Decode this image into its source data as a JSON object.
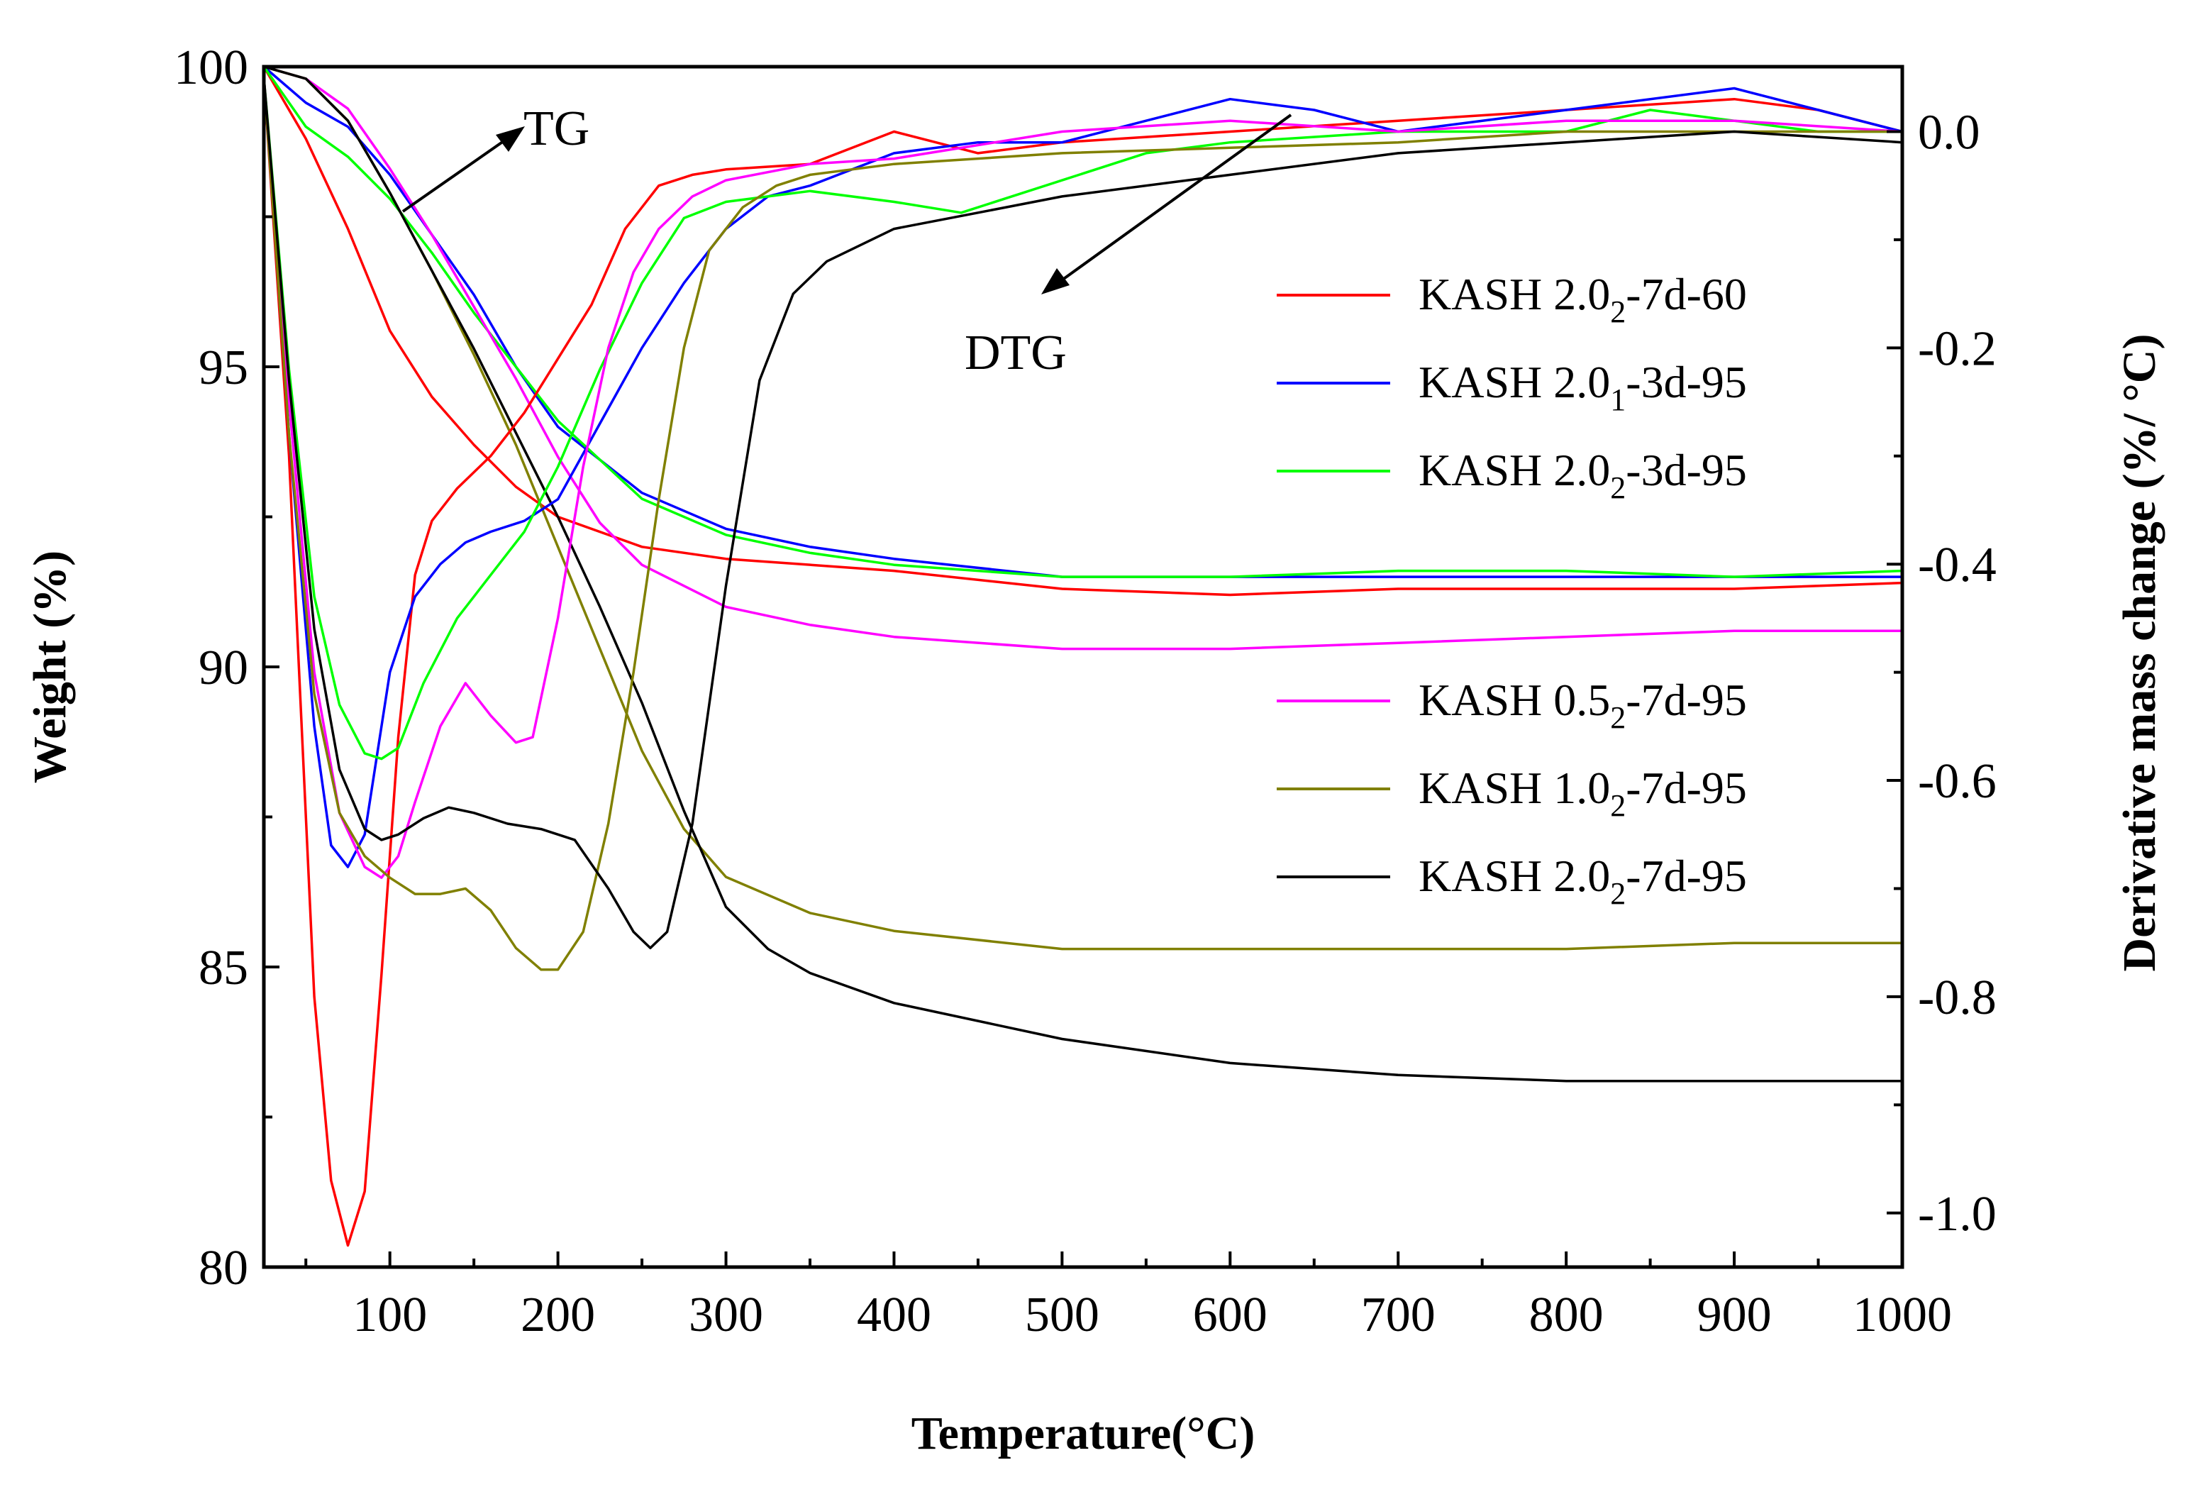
{
  "chart_data": {
    "type": "line",
    "title": "",
    "xlabel": "Temperature(°C)",
    "ylabel_left": "Weight (%)",
    "ylabel_right": "Derivative mass change (%/ °C)",
    "xlim": [
      25,
      1000
    ],
    "ylim_left": [
      80,
      100
    ],
    "ylim_right": [
      -1.05,
      0.06
    ],
    "x_ticks": [
      100,
      200,
      300,
      400,
      500,
      600,
      700,
      800,
      900,
      1000
    ],
    "y_left_ticks": [
      80,
      85,
      90,
      95,
      100
    ],
    "y_right_ticks": [
      -1.0,
      -0.8,
      -0.6,
      -0.4,
      -0.2,
      0.0
    ],
    "y_right_tick_labels": [
      "-1.0",
      "-0.8",
      "-0.6",
      "-0.4",
      "-0.2",
      "0.0"
    ],
    "grid": false,
    "annotations": [
      {
        "text": "TG",
        "arrow": "points to TG curves (left axis)"
      },
      {
        "text": "DTG",
        "arrow": "points to DTG curves (right axis)"
      }
    ],
    "legend": {
      "group1": [
        {
          "label": "KASH 2.0",
          "sub": "2",
          "tail": "-7d-60",
          "color": "#ff0000"
        },
        {
          "label": "KASH 2.0",
          "sub": "1",
          "tail": "-3d-95",
          "color": "#0000ff"
        },
        {
          "label": "KASH 2.0",
          "sub": "2",
          "tail": "-3d-95",
          "color": "#00ff00"
        }
      ],
      "group2": [
        {
          "label": "KASH 0.5",
          "sub": "2",
          "tail": "-7d-95",
          "color": "#ff00ff"
        },
        {
          "label": "KASH 1.0",
          "sub": "2",
          "tail": "-7d-95",
          "color": "#808000"
        },
        {
          "label": "KASH 2.0",
          "sub": "2",
          "tail": "-7d-95",
          "color": "#000000"
        }
      ]
    },
    "series": [
      {
        "name": "KASH 2.02-7d-60",
        "color": "#ff0000",
        "axis": "left",
        "kind": "TG",
        "x": [
          25,
          50,
          75,
          100,
          125,
          150,
          175,
          200,
          250,
          300,
          400,
          500,
          600,
          700,
          800,
          900,
          1000
        ],
        "y": [
          100,
          98.8,
          97.3,
          95.6,
          94.5,
          93.7,
          93.0,
          92.5,
          92.0,
          91.8,
          91.6,
          91.3,
          91.2,
          91.3,
          91.3,
          91.3,
          91.4
        ]
      },
      {
        "name": "KASH 2.01-3d-95",
        "color": "#0000ff",
        "axis": "left",
        "kind": "TG",
        "x": [
          25,
          50,
          75,
          100,
          125,
          150,
          175,
          200,
          250,
          300,
          350,
          400,
          500,
          600,
          700,
          800,
          900,
          1000
        ],
        "y": [
          100,
          99.4,
          99.0,
          98.2,
          97.2,
          96.2,
          95.0,
          94.0,
          92.9,
          92.3,
          92.0,
          91.8,
          91.5,
          91.5,
          91.5,
          91.5,
          91.5,
          91.5
        ]
      },
      {
        "name": "KASH 2.02-3d-95",
        "color": "#00ff00",
        "axis": "left",
        "kind": "TG",
        "x": [
          25,
          50,
          75,
          100,
          125,
          150,
          175,
          200,
          250,
          300,
          350,
          400,
          500,
          600,
          700,
          800,
          900,
          1000
        ],
        "y": [
          100,
          99.0,
          98.5,
          97.8,
          96.9,
          95.9,
          95.0,
          94.1,
          92.8,
          92.2,
          91.9,
          91.7,
          91.5,
          91.5,
          91.6,
          91.6,
          91.5,
          91.6
        ]
      },
      {
        "name": "KASH 0.52-7d-95",
        "color": "#ff00ff",
        "axis": "left",
        "kind": "TG",
        "x": [
          25,
          50,
          75,
          100,
          125,
          150,
          175,
          200,
          225,
          250,
          300,
          350,
          400,
          500,
          600,
          700,
          800,
          900,
          1000
        ],
        "y": [
          100,
          99.8,
          99.3,
          98.3,
          97.2,
          96.0,
          94.8,
          93.5,
          92.4,
          91.7,
          91.0,
          90.7,
          90.5,
          90.3,
          90.3,
          90.4,
          90.5,
          90.6,
          90.6
        ]
      },
      {
        "name": "KASH 1.02-7d-95",
        "color": "#808000",
        "axis": "left",
        "kind": "TG",
        "x": [
          25,
          50,
          75,
          100,
          125,
          150,
          175,
          200,
          225,
          250,
          275,
          300,
          350,
          400,
          500,
          600,
          700,
          800,
          900,
          1000
        ],
        "y": [
          100,
          99.8,
          99.1,
          97.9,
          96.6,
          95.2,
          93.7,
          92.0,
          90.3,
          88.6,
          87.3,
          86.5,
          85.9,
          85.6,
          85.3,
          85.3,
          85.3,
          85.3,
          85.4,
          85.4
        ]
      },
      {
        "name": "KASH 2.02-7d-95",
        "color": "#000000",
        "axis": "left",
        "kind": "TG",
        "x": [
          25,
          50,
          75,
          100,
          125,
          150,
          175,
          200,
          225,
          250,
          275,
          300,
          325,
          350,
          400,
          500,
          600,
          700,
          800,
          900,
          1000
        ],
        "y": [
          100,
          99.8,
          99.1,
          97.9,
          96.6,
          95.3,
          93.9,
          92.5,
          91.0,
          89.4,
          87.6,
          86.0,
          85.3,
          84.9,
          84.4,
          83.8,
          83.4,
          83.2,
          83.1,
          83.1,
          83.1
        ]
      },
      {
        "name": "KASH 2.02-7d-60 DTG",
        "color": "#ff0000",
        "axis": "right",
        "kind": "DTG",
        "x": [
          25,
          40,
          55,
          65,
          75,
          85,
          95,
          105,
          115,
          125,
          140,
          160,
          180,
          200,
          220,
          240,
          260,
          280,
          300,
          350,
          400,
          450,
          500,
          550,
          600,
          700,
          800,
          900,
          950,
          1000
        ],
        "y": [
          0.05,
          -0.3,
          -0.8,
          -0.97,
          -1.03,
          -0.98,
          -0.78,
          -0.56,
          -0.41,
          -0.36,
          -0.33,
          -0.3,
          -0.26,
          -0.21,
          -0.16,
          -0.09,
          -0.05,
          -0.04,
          -0.035,
          -0.03,
          0.0,
          -0.02,
          -0.01,
          -0.005,
          0.0,
          0.01,
          0.02,
          0.03,
          0.02,
          0.0
        ]
      },
      {
        "name": "KASH 2.01-3d-95 DTG",
        "color": "#0000ff",
        "axis": "right",
        "kind": "DTG",
        "x": [
          25,
          40,
          55,
          65,
          75,
          85,
          100,
          115,
          130,
          145,
          160,
          180,
          200,
          225,
          250,
          275,
          300,
          325,
          350,
          400,
          450,
          500,
          550,
          600,
          650,
          700,
          800,
          900,
          950,
          1000
        ],
        "y": [
          0.05,
          -0.28,
          -0.55,
          -0.66,
          -0.68,
          -0.65,
          -0.5,
          -0.43,
          -0.4,
          -0.38,
          -0.37,
          -0.36,
          -0.34,
          -0.27,
          -0.2,
          -0.14,
          -0.09,
          -0.06,
          -0.05,
          -0.02,
          -0.01,
          -0.01,
          0.01,
          0.03,
          0.02,
          0.0,
          0.02,
          0.04,
          0.02,
          0.0
        ]
      },
      {
        "name": "KASH 2.02-3d-95 DTG",
        "color": "#00ff00",
        "axis": "right",
        "kind": "DTG",
        "x": [
          25,
          40,
          55,
          70,
          85,
          95,
          105,
          120,
          140,
          160,
          180,
          200,
          225,
          250,
          275,
          300,
          325,
          350,
          400,
          440,
          500,
          550,
          600,
          700,
          800,
          850,
          900,
          950,
          1000
        ],
        "y": [
          0.05,
          -0.22,
          -0.43,
          -0.53,
          -0.575,
          -0.58,
          -0.57,
          -0.51,
          -0.45,
          -0.41,
          -0.37,
          -0.31,
          -0.22,
          -0.14,
          -0.08,
          -0.065,
          -0.06,
          -0.055,
          -0.065,
          -0.075,
          -0.045,
          -0.02,
          -0.01,
          0.0,
          0.0,
          0.02,
          0.01,
          0.0,
          0.0
        ]
      },
      {
        "name": "KASH 0.52-7d-95 DTG",
        "color": "#ff00ff",
        "axis": "right",
        "kind": "DTG",
        "x": [
          25,
          40,
          55,
          70,
          85,
          95,
          105,
          115,
          130,
          145,
          160,
          175,
          185,
          200,
          215,
          230,
          245,
          260,
          280,
          300,
          350,
          400,
          500,
          600,
          700,
          800,
          900,
          1000
        ],
        "y": [
          0.05,
          -0.25,
          -0.5,
          -0.63,
          -0.68,
          -0.69,
          -0.67,
          -0.62,
          -0.55,
          -0.51,
          -0.54,
          -0.565,
          -0.56,
          -0.45,
          -0.31,
          -0.2,
          -0.13,
          -0.09,
          -0.06,
          -0.045,
          -0.03,
          -0.025,
          0.0,
          0.01,
          0.0,
          0.01,
          0.01,
          0.0
        ]
      },
      {
        "name": "KASH 1.02-7d-95 DTG",
        "color": "#808000",
        "axis": "right",
        "kind": "DTG",
        "x": [
          25,
          40,
          55,
          70,
          85,
          100,
          115,
          130,
          145,
          160,
          175,
          190,
          200,
          215,
          230,
          245,
          260,
          275,
          290,
          310,
          330,
          350,
          400,
          500,
          600,
          700,
          800,
          900,
          1000
        ],
        "y": [
          0.05,
          -0.28,
          -0.52,
          -0.63,
          -0.67,
          -0.69,
          -0.705,
          -0.705,
          -0.7,
          -0.72,
          -0.755,
          -0.775,
          -0.775,
          -0.74,
          -0.64,
          -0.5,
          -0.34,
          -0.2,
          -0.11,
          -0.07,
          -0.05,
          -0.04,
          -0.03,
          -0.02,
          -0.015,
          -0.01,
          0.0,
          0.0,
          0.0
        ]
      },
      {
        "name": "KASH 2.02-7d-95 DTG",
        "color": "#000000",
        "axis": "right",
        "kind": "DTG",
        "x": [
          25,
          40,
          55,
          70,
          85,
          95,
          105,
          120,
          135,
          150,
          170,
          190,
          210,
          230,
          245,
          255,
          265,
          280,
          300,
          320,
          340,
          360,
          400,
          450,
          500,
          600,
          700,
          800,
          900,
          1000
        ],
        "y": [
          0.05,
          -0.23,
          -0.46,
          -0.59,
          -0.645,
          -0.655,
          -0.65,
          -0.635,
          -0.625,
          -0.63,
          -0.64,
          -0.645,
          -0.655,
          -0.7,
          -0.74,
          -0.755,
          -0.74,
          -0.64,
          -0.42,
          -0.23,
          -0.15,
          -0.12,
          -0.09,
          -0.075,
          -0.06,
          -0.04,
          -0.02,
          -0.01,
          0.0,
          -0.01
        ]
      }
    ]
  }
}
